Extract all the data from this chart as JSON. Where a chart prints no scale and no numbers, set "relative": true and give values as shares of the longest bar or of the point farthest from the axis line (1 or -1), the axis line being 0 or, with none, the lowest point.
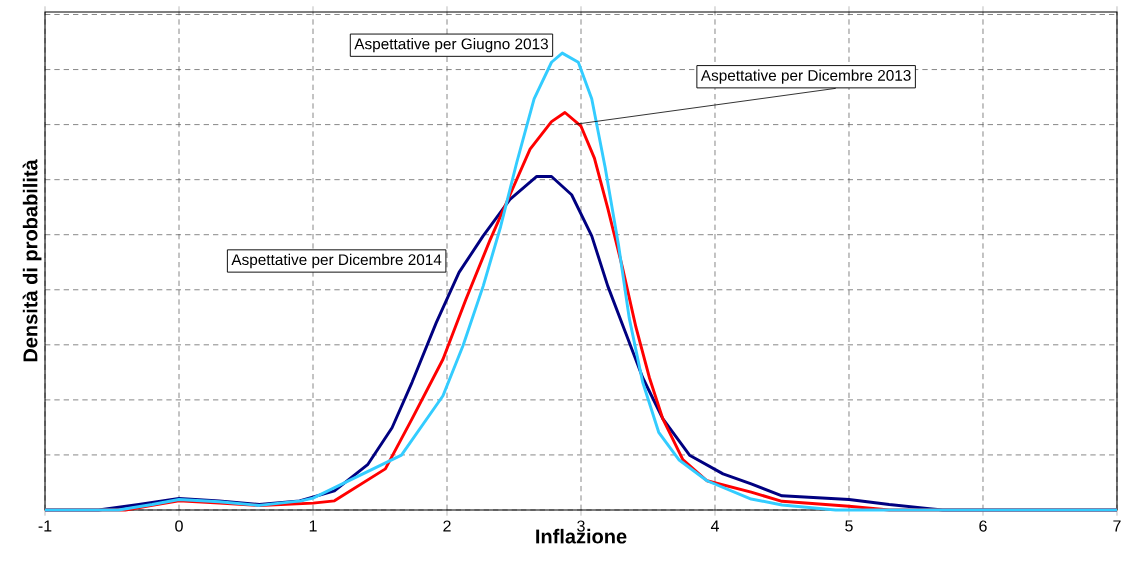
{
  "chart_data": {
    "type": "line",
    "xlabel": "Inflazione",
    "ylabel": "Densità di probabilità",
    "relative": true,
    "grid": true,
    "line_style": "solid",
    "marker": "none",
    "xlim": [
      -1,
      7
    ],
    "xticks": [
      -1,
      0,
      1,
      2,
      3,
      4,
      5,
      6,
      7
    ],
    "series": [
      {
        "name": "Aspettative per Dicembre 2014",
        "color": "#000080",
        "x": [
          -1,
          -0.6,
          -0.3,
          0,
          0.3,
          0.6,
          0.9,
          1.16,
          1.41,
          1.59,
          1.74,
          1.92,
          2.09,
          2.27,
          2.47,
          2.67,
          2.78,
          2.93,
          3.08,
          3.2,
          3.33,
          3.46,
          3.61,
          3.81,
          4.06,
          4.27,
          4.5,
          5,
          5.3,
          5.6,
          5.7,
          7
        ],
        "values": [
          0,
          0,
          0.012,
          0.025,
          0.02,
          0.012,
          0.02,
          0.042,
          0.1,
          0.18,
          0.28,
          0.41,
          0.52,
          0.6,
          0.68,
          0.73,
          0.73,
          0.69,
          0.6,
          0.49,
          0.39,
          0.29,
          0.2,
          0.12,
          0.079,
          0.057,
          0.031,
          0.023,
          0.012,
          0.003,
          0,
          0
        ]
      },
      {
        "name": "Aspettative per Dicembre 2013",
        "color": "#ff0000",
        "x": [
          -1,
          -0.4,
          -0.2,
          0,
          0.3,
          0.6,
          1,
          1.16,
          1.54,
          1.74,
          1.97,
          2.14,
          2.32,
          2.47,
          2.62,
          2.78,
          2.88,
          3.0,
          3.1,
          3.2,
          3.31,
          3.41,
          3.51,
          3.61,
          3.76,
          3.94,
          4.27,
          4.5,
          5,
          5.3,
          7
        ],
        "values": [
          0,
          0,
          0.01,
          0.02,
          0.015,
          0.01,
          0.015,
          0.02,
          0.09,
          0.2,
          0.33,
          0.46,
          0.59,
          0.69,
          0.79,
          0.85,
          0.87,
          0.84,
          0.77,
          0.66,
          0.53,
          0.4,
          0.29,
          0.2,
          0.11,
          0.064,
          0.039,
          0.019,
          0.008,
          0,
          0
        ]
      },
      {
        "name": "Aspettative per Giugno 2013",
        "color": "#33ccff",
        "x": [
          -1,
          -0.45,
          -0.2,
          0,
          0.3,
          0.6,
          0.91,
          1.0,
          1.66,
          1.97,
          2.12,
          2.27,
          2.4,
          2.52,
          2.65,
          2.78,
          2.86,
          2.98,
          3.08,
          3.18,
          3.28,
          3.36,
          3.46,
          3.58,
          3.73,
          3.94,
          4.27,
          4.5,
          4.9,
          7
        ],
        "values": [
          0,
          0,
          0.012,
          0.023,
          0.018,
          0.01,
          0.02,
          0.026,
          0.12,
          0.25,
          0.36,
          0.49,
          0.62,
          0.76,
          0.9,
          0.98,
          1,
          0.98,
          0.9,
          0.75,
          0.58,
          0.42,
          0.28,
          0.17,
          0.11,
          0.064,
          0.024,
          0.011,
          0,
          0
        ]
      }
    ]
  }
}
